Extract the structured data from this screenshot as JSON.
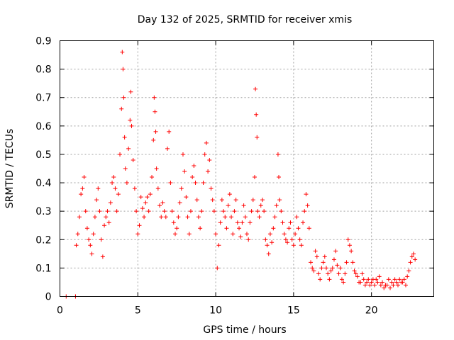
{
  "chart_data": {
    "type": "scatter",
    "title": "Day 132 of 2025, SRMTID for receiver xmis",
    "xlabel": "GPS time / hours",
    "ylabel": "SRMTID / TECUs",
    "xlim": [
      0,
      24
    ],
    "ylim": [
      0,
      0.9
    ],
    "x_ticks": [
      0,
      5,
      10,
      15,
      20
    ],
    "x_tick_labels": [
      "0",
      "5",
      "10",
      "15",
      "20"
    ],
    "y_ticks": [
      0,
      0.1,
      0.2,
      0.3,
      0.4,
      0.5,
      0.6,
      0.7,
      0.8,
      0.9
    ],
    "y_tick_labels": [
      "0",
      "0.1",
      "0.2",
      "0.3",
      "0.4",
      "0.5",
      "0.6",
      "0.7",
      "0.8",
      "0.9"
    ],
    "grid": true,
    "marker": "plus",
    "color": "#ff0000",
    "series": [
      {
        "name": "SRMTID",
        "x": [
          0.4,
          1.0,
          1.0,
          1.05,
          1.15,
          1.25,
          1.35,
          1.45,
          1.55,
          1.65,
          1.75,
          1.85,
          1.95,
          2.05,
          2.15,
          2.25,
          2.35,
          2.45,
          2.55,
          2.65,
          2.75,
          2.85,
          2.95,
          3.05,
          3.15,
          3.25,
          3.35,
          3.45,
          3.55,
          3.65,
          3.75,
          3.85,
          3.95,
          4.0,
          4.05,
          4.1,
          4.15,
          4.2,
          4.3,
          4.4,
          4.5,
          4.55,
          4.6,
          4.7,
          4.8,
          4.9,
          5.0,
          5.1,
          5.2,
          5.3,
          5.4,
          5.5,
          5.6,
          5.7,
          5.8,
          5.9,
          6.0,
          6.05,
          6.1,
          6.15,
          6.2,
          6.3,
          6.4,
          6.5,
          6.6,
          6.7,
          6.8,
          6.9,
          7.0,
          7.1,
          7.2,
          7.3,
          7.4,
          7.5,
          7.6,
          7.7,
          7.8,
          7.9,
          8.0,
          8.1,
          8.2,
          8.3,
          8.4,
          8.5,
          8.6,
          8.7,
          8.8,
          8.9,
          9.0,
          9.1,
          9.2,
          9.3,
          9.4,
          9.5,
          9.6,
          9.7,
          9.8,
          9.9,
          10.0,
          10.1,
          10.2,
          10.3,
          10.4,
          10.5,
          10.6,
          10.7,
          10.8,
          10.9,
          11.0,
          11.1,
          11.2,
          11.3,
          11.4,
          11.5,
          11.6,
          11.7,
          11.8,
          11.9,
          12.0,
          12.1,
          12.2,
          12.3,
          12.4,
          12.5,
          12.55,
          12.6,
          12.65,
          12.7,
          12.8,
          12.9,
          13.0,
          13.1,
          13.2,
          13.3,
          13.4,
          13.5,
          13.6,
          13.7,
          13.8,
          13.9,
          14.0,
          14.05,
          14.1,
          14.2,
          14.3,
          14.4,
          14.5,
          14.6,
          14.7,
          14.8,
          14.9,
          15.0,
          15.1,
          15.2,
          15.3,
          15.4,
          15.5,
          15.6,
          15.7,
          15.8,
          15.9,
          16.0,
          16.1,
          16.2,
          16.3,
          16.4,
          16.5,
          16.6,
          16.7,
          16.8,
          16.9,
          17.0,
          17.1,
          17.2,
          17.3,
          17.4,
          17.5,
          17.6,
          17.7,
          17.8,
          17.9,
          18.0,
          18.1,
          18.2,
          18.3,
          18.4,
          18.5,
          18.6,
          18.7,
          18.8,
          18.9,
          19.0,
          19.1,
          19.2,
          19.3,
          19.4,
          19.5,
          19.6,
          19.7,
          19.8,
          19.9,
          20.0,
          20.1,
          20.2,
          20.3,
          20.4,
          20.5,
          20.6,
          20.7,
          20.8,
          20.9,
          21.0,
          21.1,
          21.2,
          21.3,
          21.4,
          21.5,
          21.6,
          21.7,
          21.8,
          21.9,
          22.0,
          22.1,
          22.2,
          22.3,
          22.4,
          22.5,
          22.6,
          22.7,
          22.8
        ],
        "y": [
          0.0,
          0.0,
          0.0,
          0.18,
          0.22,
          0.28,
          0.36,
          0.38,
          0.42,
          0.3,
          0.24,
          0.2,
          0.18,
          0.15,
          0.22,
          0.28,
          0.34,
          0.38,
          0.3,
          0.2,
          0.14,
          0.25,
          0.28,
          0.3,
          0.26,
          0.33,
          0.4,
          0.42,
          0.38,
          0.3,
          0.36,
          0.5,
          0.66,
          0.86,
          0.8,
          0.7,
          0.56,
          0.45,
          0.4,
          0.52,
          0.62,
          0.72,
          0.6,
          0.48,
          0.38,
          0.3,
          0.22,
          0.25,
          0.35,
          0.31,
          0.28,
          0.33,
          0.35,
          0.3,
          0.36,
          0.42,
          0.55,
          0.7,
          0.65,
          0.58,
          0.45,
          0.38,
          0.32,
          0.28,
          0.33,
          0.3,
          0.28,
          0.52,
          0.58,
          0.4,
          0.3,
          0.26,
          0.22,
          0.24,
          0.28,
          0.33,
          0.38,
          0.5,
          0.44,
          0.35,
          0.28,
          0.22,
          0.3,
          0.42,
          0.46,
          0.4,
          0.34,
          0.28,
          0.24,
          0.3,
          0.4,
          0.5,
          0.54,
          0.44,
          0.48,
          0.38,
          0.34,
          0.3,
          0.22,
          0.1,
          0.18,
          0.26,
          0.34,
          0.3,
          0.28,
          0.24,
          0.32,
          0.36,
          0.28,
          0.22,
          0.3,
          0.34,
          0.26,
          0.24,
          0.21,
          0.26,
          0.32,
          0.28,
          0.22,
          0.2,
          0.26,
          0.3,
          0.34,
          0.42,
          0.73,
          0.64,
          0.56,
          0.3,
          0.28,
          0.32,
          0.34,
          0.3,
          0.2,
          0.18,
          0.15,
          0.22,
          0.19,
          0.24,
          0.28,
          0.32,
          0.5,
          0.42,
          0.34,
          0.3,
          0.26,
          0.22,
          0.2,
          0.19,
          0.24,
          0.26,
          0.2,
          0.18,
          0.22,
          0.28,
          0.24,
          0.2,
          0.18,
          0.26,
          0.3,
          0.36,
          0.32,
          0.24,
          0.12,
          0.1,
          0.09,
          0.16,
          0.14,
          0.08,
          0.06,
          0.1,
          0.12,
          0.14,
          0.1,
          0.08,
          0.06,
          0.09,
          0.1,
          0.13,
          0.16,
          0.11,
          0.08,
          0.1,
          0.06,
          0.05,
          0.08,
          0.12,
          0.2,
          0.18,
          0.16,
          0.12,
          0.09,
          0.08,
          0.07,
          0.05,
          0.05,
          0.08,
          0.06,
          0.04,
          0.05,
          0.06,
          0.04,
          0.05,
          0.06,
          0.04,
          0.06,
          0.05,
          0.07,
          0.04,
          0.05,
          0.03,
          0.04,
          0.04,
          0.06,
          0.03,
          0.05,
          0.04,
          0.06,
          0.05,
          0.04,
          0.06,
          0.05,
          0.05,
          0.06,
          0.04,
          0.07,
          0.09,
          0.12,
          0.14,
          0.15,
          0.13
        ]
      }
    ]
  }
}
